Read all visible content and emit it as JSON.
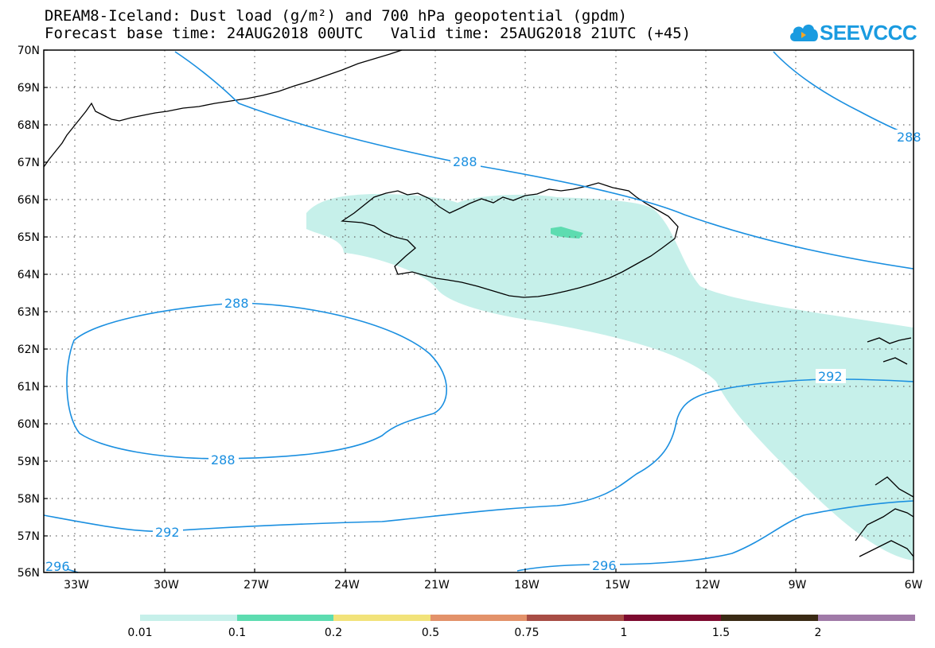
{
  "header": {
    "title_line1": "DREAM8-Iceland: Dust load (g/m²) and 700 hPa geopotential (gpdm)",
    "base_time_label": "Forecast base time: 24AUG2018 00UTC",
    "valid_time_label": "Valid time: 25AUG2018 21UTC (+45)"
  },
  "logo": {
    "text": "SEEVCCC"
  },
  "map": {
    "lat_labels": [
      "70N",
      "69N",
      "68N",
      "67N",
      "66N",
      "65N",
      "64N",
      "63N",
      "62N",
      "61N",
      "60N",
      "59N",
      "58N",
      "57N",
      "56N"
    ],
    "lon_labels": [
      "33W",
      "30W",
      "27W",
      "24W",
      "21W",
      "18W",
      "15W",
      "12W",
      "9W",
      "6W"
    ],
    "contour_labels": [
      {
        "text": "288"
      },
      {
        "text": "288"
      },
      {
        "text": "288"
      },
      {
        "text": "288"
      },
      {
        "text": "292"
      },
      {
        "text": "292"
      },
      {
        "text": "296"
      },
      {
        "text": "296"
      }
    ],
    "colors": {
      "contour": "#1a8fe0",
      "dust_low": "#c6f0ea",
      "dust_mid": "#5ddcb0"
    }
  },
  "colorbar": {
    "labels": [
      "0.01",
      "0.1",
      "0.2",
      "0.5",
      "0.75",
      "1",
      "1.5",
      "2"
    ],
    "colors": [
      "#c6f0ea",
      "#5ddcb0",
      "#f2e37a",
      "#e3926a",
      "#a84d45",
      "#7d0a2f",
      "#3a2a14",
      "#a07aa8"
    ]
  }
}
